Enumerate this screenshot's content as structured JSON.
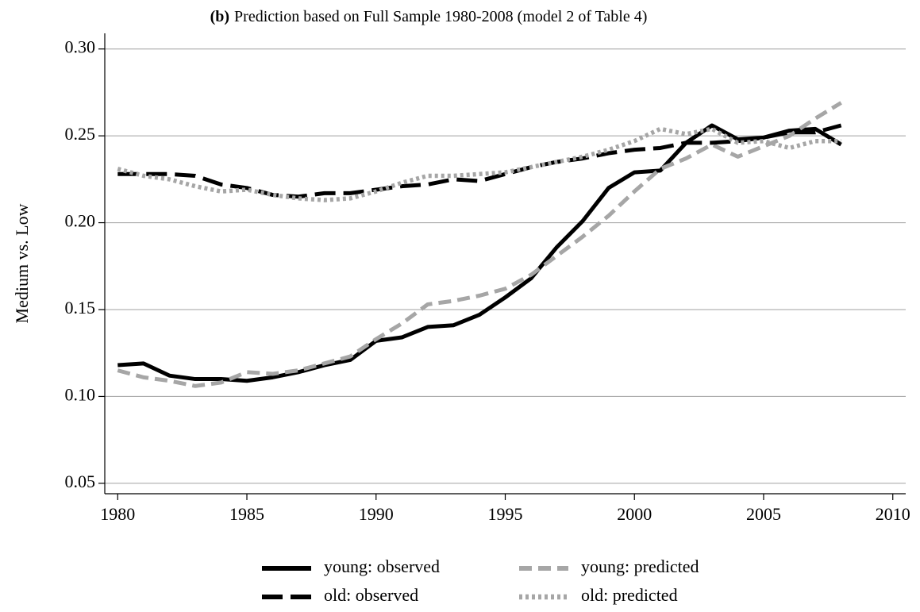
{
  "chart_data": {
    "type": "line",
    "panel_label": "(b)",
    "title": "Prediction based on Full Sample 1980-2008 (model 2 of Table 4)",
    "y_label": "Medium vs. Low",
    "x": [
      1980,
      1981,
      1982,
      1983,
      1984,
      1985,
      1986,
      1987,
      1988,
      1989,
      1990,
      1991,
      1992,
      1993,
      1994,
      1995,
      1996,
      1997,
      1998,
      1999,
      2000,
      2001,
      2002,
      2003,
      2004,
      2005,
      2006,
      2007,
      2008
    ],
    "series": [
      {
        "name": "young: observed",
        "color": "#000000",
        "dash": "solid",
        "values": [
          0.118,
          0.119,
          0.112,
          0.11,
          0.11,
          0.109,
          0.111,
          0.114,
          0.118,
          0.121,
          0.132,
          0.134,
          0.14,
          0.141,
          0.147,
          0.157,
          0.168,
          0.186,
          0.201,
          0.22,
          0.229,
          0.23,
          0.246,
          0.256,
          0.248,
          0.249,
          0.253,
          0.254,
          0.245
        ]
      },
      {
        "name": "young: predicted",
        "color": "#a6a6a6",
        "dash": "dash",
        "values": [
          0.115,
          0.111,
          0.109,
          0.106,
          0.108,
          0.114,
          0.113,
          0.115,
          0.119,
          0.123,
          0.133,
          0.142,
          0.153,
          0.155,
          0.158,
          0.162,
          0.17,
          0.181,
          0.192,
          0.204,
          0.218,
          0.231,
          0.237,
          0.245,
          0.238,
          0.244,
          0.25,
          0.26,
          0.269
        ]
      },
      {
        "name": "old: observed",
        "color": "#000000",
        "dash": "long-dash",
        "values": [
          0.228,
          0.228,
          0.228,
          0.227,
          0.222,
          0.22,
          0.216,
          0.215,
          0.217,
          0.217,
          0.219,
          0.221,
          0.222,
          0.225,
          0.224,
          0.228,
          0.232,
          0.235,
          0.237,
          0.24,
          0.242,
          0.243,
          0.246,
          0.246,
          0.247,
          0.249,
          0.252,
          0.252,
          0.256
        ]
      },
      {
        "name": "old: predicted",
        "color": "#a6a6a6",
        "dash": "dot",
        "values": [
          0.231,
          0.227,
          0.225,
          0.221,
          0.218,
          0.219,
          0.216,
          0.214,
          0.213,
          0.214,
          0.218,
          0.223,
          0.227,
          0.227,
          0.228,
          0.229,
          0.232,
          0.235,
          0.238,
          0.242,
          0.247,
          0.254,
          0.251,
          0.254,
          0.246,
          0.247,
          0.243,
          0.247,
          0.247
        ]
      }
    ],
    "xlim": [
      1979.5,
      2010.5
    ],
    "xticks": [
      1980,
      1985,
      1990,
      1995,
      2000,
      2005,
      2010
    ],
    "ylim": [
      0.044,
      0.309
    ],
    "yticks": [
      {
        "value": 0.05,
        "label": "0.05"
      },
      {
        "value": 0.1,
        "label": "0.10"
      },
      {
        "value": 0.15,
        "label": "0.15"
      },
      {
        "value": 0.2,
        "label": "0.20"
      },
      {
        "value": 0.25,
        "label": "0.25"
      },
      {
        "value": 0.3,
        "label": "0.30"
      }
    ],
    "grid": true,
    "legend": "bottom"
  }
}
